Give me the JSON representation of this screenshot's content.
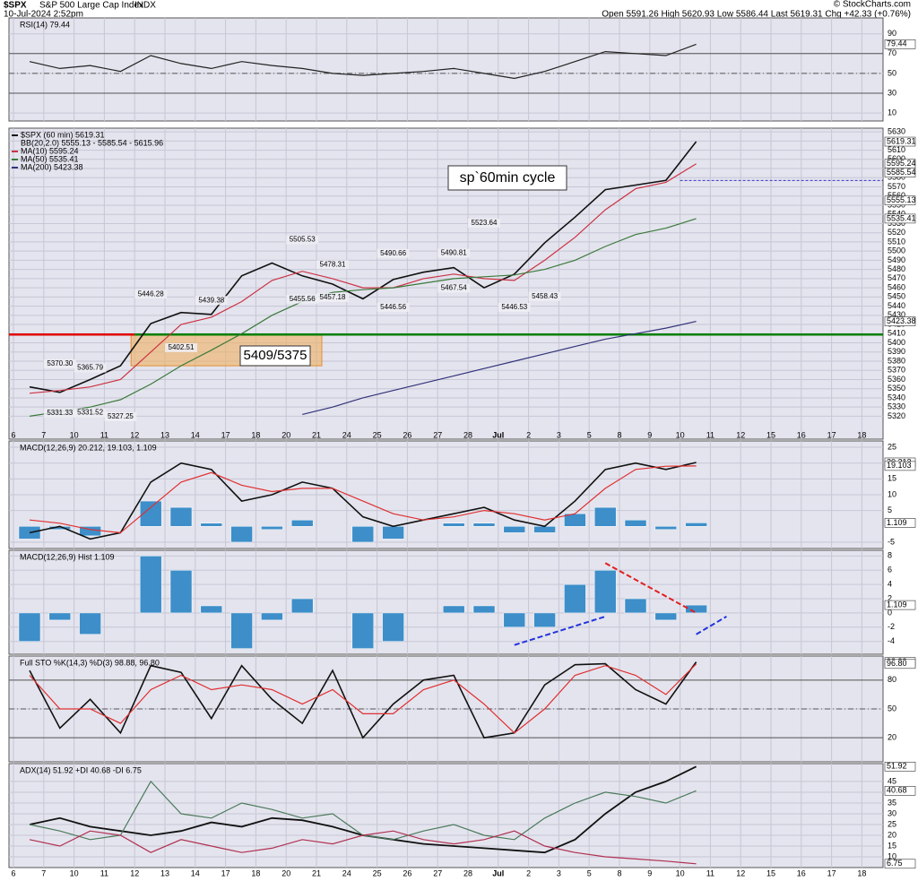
{
  "header": {
    "symbol": "$SPX",
    "name": "S&P 500 Large Cap Index",
    "exchange": "INDX",
    "date": "10-Jul-2024 2:52pm",
    "quote": "Open 5591.26  High 5620.93  Low 5586.44  Last 5619.31  Chg +42.33 (+0.76%)",
    "credit": "© StockCharts.com"
  },
  "chart_data": [
    {
      "type": "line",
      "title": "RSI(14) 79.44",
      "ylim": [
        2,
        106
      ],
      "yticks": [
        90,
        70,
        50,
        30,
        10
      ],
      "grid": true,
      "ref_lines": [
        {
          "value": 70
        },
        {
          "value": 50,
          "dashed": true
        },
        {
          "value": 30
        }
      ],
      "tags": [
        {
          "value": 79.44,
          "label": "79.44"
        }
      ],
      "series": [
        {
          "color": "#222",
          "values": [
            62,
            55,
            58,
            52,
            68,
            60,
            55,
            62,
            58,
            55,
            50,
            48,
            50,
            52,
            55,
            50,
            45,
            52,
            62,
            72,
            70,
            68,
            79.44,
            null,
            null,
            null,
            null,
            null,
            null
          ]
        }
      ]
    },
    {
      "type": "line",
      "bands_label": "BB(20,2.0) 5555.13 - 5585.54 - 5615.96",
      "ylim": [
        5295,
        5634
      ],
      "categories": [
        "6",
        "7",
        "10",
        "11",
        "12",
        "13",
        "14",
        "17",
        "18",
        "20",
        "21",
        "24",
        "25",
        "26",
        "27",
        "28",
        "Jul",
        "2",
        "3",
        "5",
        "8",
        "9",
        "10",
        "11",
        "12",
        "15",
        "16",
        "17",
        "18"
      ],
      "yticks": [
        5320,
        5330,
        5340,
        5350,
        5360,
        5370,
        5380,
        5390,
        5400,
        5410,
        5420,
        5430,
        5440,
        5450,
        5460,
        5470,
        5480,
        5490,
        5500,
        5510,
        5520,
        5530,
        5540,
        5550,
        5560,
        5570,
        5580,
        5590,
        5600,
        5610,
        5620,
        5630
      ],
      "grid": true,
      "tags": [
        {
          "value": 5619.31,
          "label": "5619.31"
        },
        {
          "value": 5595.24,
          "label": "5595.24"
        },
        {
          "value": 5585.54,
          "label": "5585.54"
        },
        {
          "value": 5555.13,
          "label": "5555.13"
        },
        {
          "value": 5535.41,
          "label": "5535.41"
        },
        {
          "value": 5423.38,
          "label": "5423.38"
        }
      ],
      "series": [
        {
          "name": "$SPX (60 min) 5619.31",
          "color": "#111",
          "width": 1.6,
          "values": [
            5352,
            5346,
            5360,
            5375,
            5421,
            5433,
            5431,
            5473,
            5487,
            5473,
            5464,
            5448,
            5469,
            5477,
            5482,
            5460,
            5475,
            5509,
            5537,
            5567,
            5572,
            5577,
            5619.31,
            null,
            null,
            null,
            null,
            null,
            null
          ]
        },
        {
          "name": "MA(10) 5595.24",
          "color": "#cc3344",
          "values": [
            5345,
            5348,
            5352,
            5360,
            5390,
            5420,
            5428,
            5445,
            5468,
            5478,
            5470,
            5460,
            5460,
            5470,
            5475,
            5470,
            5468,
            5490,
            5515,
            5545,
            5568,
            5575,
            5595.24,
            null,
            null,
            null,
            null,
            null,
            null
          ]
        },
        {
          "name": "MA(50) 5535.41",
          "color": "#3a7a3a",
          "values": [
            5320,
            5325,
            5330,
            5338,
            5355,
            5375,
            5392,
            5410,
            5430,
            5445,
            5455,
            5458,
            5460,
            5465,
            5470,
            5472,
            5474,
            5480,
            5490,
            5505,
            5518,
            5525,
            5535.41,
            null,
            null,
            null,
            null,
            null,
            null
          ]
        },
        {
          "name": "MA(200) 5423.38",
          "color": "#33337a",
          "values": [
            null,
            null,
            null,
            null,
            null,
            null,
            null,
            null,
            null,
            5322,
            5330,
            5340,
            5348,
            5356,
            5364,
            5372,
            5380,
            5388,
            5396,
            5404,
            5410,
            5416,
            5423.38,
            null,
            null,
            null,
            null,
            null,
            null
          ]
        }
      ],
      "annotations": [
        {
          "label": "5370.30",
          "value": 5370.3,
          "at": "7"
        },
        {
          "label": "5365.79",
          "value": 5365.79,
          "at": "10"
        },
        {
          "label": "5331.33",
          "value": 5331.33,
          "at": "7",
          "place": "below"
        },
        {
          "label": "5331.52",
          "value": 5331.52,
          "at": "10",
          "place": "below"
        },
        {
          "label": "5327.25",
          "value": 5327.25,
          "at": "11",
          "place": "below"
        },
        {
          "label": "5446.28",
          "value": 5446.28,
          "at": "12"
        },
        {
          "label": "5439.38",
          "value": 5439.38,
          "at": "14"
        },
        {
          "label": "5402.51",
          "value": 5402.51,
          "at": "13",
          "place": "below"
        },
        {
          "label": "5505.53",
          "value": 5505.53,
          "at": "20"
        },
        {
          "label": "5478.31",
          "value": 5478.31,
          "at": "21"
        },
        {
          "label": "5490.66",
          "value": 5490.66,
          "at": "25"
        },
        {
          "label": "5455.56",
          "value": 5455.56,
          "at": "20",
          "place": "below"
        },
        {
          "label": "5457.18",
          "value": 5457.18,
          "at": "21",
          "place": "below"
        },
        {
          "label": "5446.56",
          "value": 5446.56,
          "at": "25",
          "place": "below"
        },
        {
          "label": "5490.81",
          "value": 5490.81,
          "at": "27"
        },
        {
          "label": "5523.64",
          "value": 5523.64,
          "at": "28"
        },
        {
          "label": "5467.54",
          "value": 5467.54,
          "at": "27",
          "place": "below"
        },
        {
          "label": "5446.53",
          "value": 5446.53,
          "at": "Jul",
          "place": "below"
        },
        {
          "label": "5458.43",
          "value": 5458.43,
          "at": "2",
          "place": "below"
        }
      ],
      "levels": [
        {
          "value": 5409,
          "color": "#e00000",
          "to": "12"
        },
        {
          "value": 5409,
          "color": "#008000",
          "from": "12"
        },
        {
          "value": 5577,
          "color": "#3333cc",
          "dashed": true,
          "from": "10",
          "after": "Jul"
        }
      ],
      "zone": {
        "label": "5409/5375",
        "top": 5409,
        "bottom": 5375,
        "from": "12",
        "to": "21"
      },
      "note": "sp`60min cycle"
    },
    {
      "type": "line",
      "title": "MACD(12,26,9) 20.212, 19.103, 1.109",
      "ylim": [
        -7,
        27
      ],
      "yticks": [
        25,
        20,
        15,
        10,
        5,
        -5
      ],
      "grid": true,
      "tags": [
        {
          "value": 20.212,
          "label": "20.212"
        },
        {
          "value": 19.103,
          "label": "19.103"
        },
        {
          "value": 1.109,
          "label": "1.109"
        }
      ],
      "series": [
        {
          "style": "bar",
          "color": "#3d8ec9",
          "values": [
            -4,
            -1,
            -3,
            0,
            8,
            6,
            1,
            -5,
            -1,
            2,
            0,
            -5,
            -4,
            0,
            1,
            1,
            -2,
            -2,
            4,
            6,
            2,
            -1,
            1.109,
            null,
            null,
            null,
            null,
            null,
            null
          ]
        },
        {
          "color": "#111",
          "width": 1.6,
          "values": [
            -2,
            0,
            -4,
            -2,
            14,
            20,
            18,
            8,
            10,
            14,
            12,
            3,
            0,
            2,
            4,
            6,
            2,
            0,
            8,
            18,
            20,
            18,
            20.212,
            null,
            null,
            null,
            null,
            null,
            null
          ]
        },
        {
          "color": "#e03030",
          "values": [
            2,
            1,
            -1,
            -2,
            6,
            14,
            17,
            13,
            11,
            12,
            12,
            8,
            4,
            2,
            3,
            5,
            4,
            2,
            4,
            12,
            18,
            19,
            19.103,
            null,
            null,
            null,
            null,
            null,
            null
          ]
        }
      ]
    },
    {
      "type": "bar",
      "title": "MACD(12,26,9) Hist 1.109",
      "ylim": [
        -5.8,
        8.8
      ],
      "yticks": [
        8,
        6,
        4,
        2,
        0,
        -2,
        -4
      ],
      "grid": true,
      "tags": [
        {
          "value": 1.109,
          "label": "1.109"
        }
      ],
      "series": [
        {
          "style": "bar",
          "color": "#3d8ec9",
          "values": [
            -4,
            -1,
            -3,
            0,
            8,
            6,
            1,
            -5,
            -1,
            2,
            0,
            -5,
            -4,
            0,
            1,
            1,
            -2,
            -2,
            4,
            6,
            2,
            -1,
            1.109,
            null,
            null,
            null,
            null,
            null,
            null
          ]
        }
      ],
      "trend_lines": [
        {
          "color": "#2233dd",
          "from": "Jul",
          "to": "5",
          "start": -4.5,
          "end": -0.5
        },
        {
          "color": "#e02020",
          "from": "5",
          "to": "10",
          "after": "Jul",
          "start": 7,
          "end": 0
        },
        {
          "color": "#2233dd",
          "from": "10",
          "to": "11",
          "after": "Jul",
          "start": -3,
          "end": -0.5
        }
      ]
    },
    {
      "type": "line",
      "title": "Full STO %K(14,3) %D(3) 98.88, 96.80",
      "ylim": [
        -5,
        105
      ],
      "yticks": [
        80,
        50,
        20
      ],
      "grid": true,
      "ref_lines": [
        {
          "value": 80
        },
        {
          "value": 50,
          "dashed": true
        },
        {
          "value": 20
        }
      ],
      "tags": [
        {
          "value": 98.88,
          "label": "98.88"
        },
        {
          "value": 96.8,
          "label": "96.80"
        }
      ],
      "series": [
        {
          "color": "#111",
          "width": 1.6,
          "values": [
            90,
            30,
            60,
            25,
            95,
            88,
            40,
            95,
            60,
            35,
            90,
            20,
            55,
            80,
            85,
            20,
            25,
            75,
            96,
            97,
            70,
            55,
            98.88,
            null,
            null,
            null,
            null,
            null,
            null
          ]
        },
        {
          "color": "#e03030",
          "values": [
            85,
            50,
            50,
            35,
            70,
            85,
            70,
            75,
            70,
            55,
            70,
            45,
            45,
            70,
            80,
            55,
            25,
            50,
            85,
            95,
            85,
            65,
            96.8,
            null,
            null,
            null,
            null,
            null,
            null
          ]
        }
      ]
    },
    {
      "type": "line",
      "title": "ADX(14) 51.92 +DI 40.68 -DI 6.75",
      "ylim": [
        5,
        53.3
      ],
      "yticks": [
        45,
        40,
        35,
        30,
        25,
        20,
        15,
        10
      ],
      "grid": true,
      "categories": [
        "6",
        "7",
        "10",
        "11",
        "12",
        "13",
        "14",
        "17",
        "18",
        "20",
        "21",
        "24",
        "25",
        "26",
        "27",
        "28",
        "Jul",
        "2",
        "3",
        "5",
        "8",
        "9",
        "10",
        "11",
        "12",
        "15",
        "16",
        "17",
        "18"
      ],
      "tags": [
        {
          "value": 51.92,
          "label": "51.92"
        },
        {
          "value": 40.68,
          "label": "40.68"
        },
        {
          "value": 6.75,
          "label": "6.75"
        }
      ],
      "series": [
        {
          "color": "#111",
          "width": 1.8,
          "values": [
            25,
            28,
            24,
            22,
            20,
            22,
            26,
            24,
            28,
            27,
            24,
            20,
            18,
            16,
            15,
            14,
            13,
            12,
            18,
            30,
            40,
            45,
            51.92,
            null,
            null,
            null,
            null,
            null,
            null
          ]
        },
        {
          "color": "#4a7a5a",
          "values": [
            25,
            22,
            18,
            20,
            45,
            30,
            28,
            35,
            32,
            28,
            30,
            20,
            18,
            22,
            25,
            20,
            18,
            28,
            35,
            40,
            38,
            35,
            40.68,
            null,
            null,
            null,
            null,
            null,
            null
          ]
        },
        {
          "color": "#b03050",
          "values": [
            18,
            15,
            22,
            20,
            12,
            18,
            15,
            12,
            14,
            18,
            16,
            20,
            22,
            18,
            16,
            18,
            22,
            15,
            12,
            10,
            9,
            8,
            6.75,
            null,
            null,
            null,
            null,
            null,
            null
          ]
        }
      ]
    }
  ]
}
